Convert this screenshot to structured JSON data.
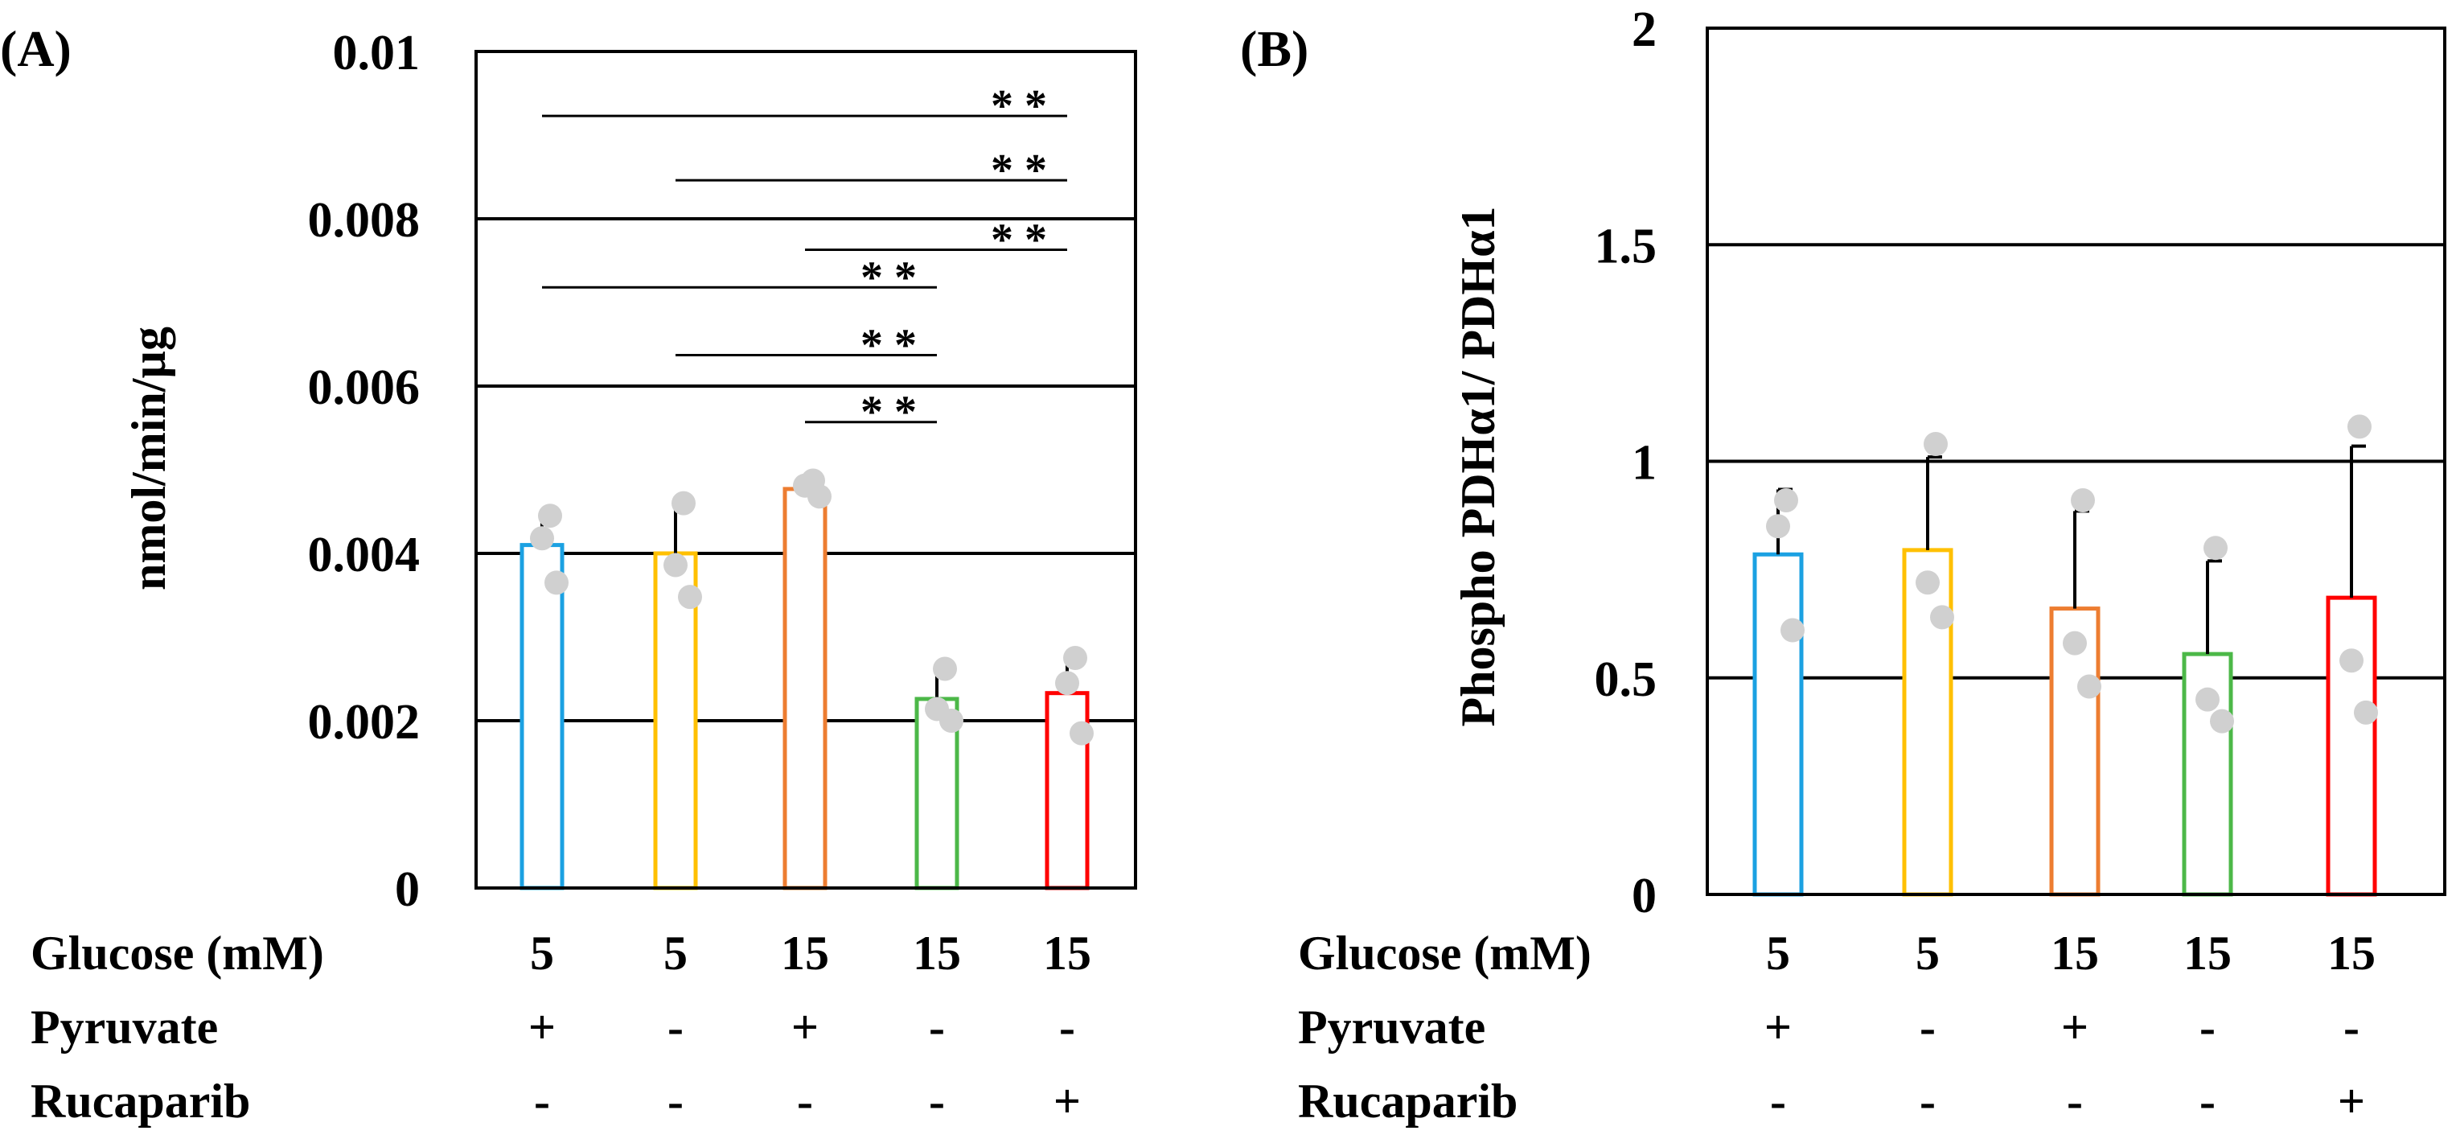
{
  "colors": {
    "bar_colors": [
      "#1ba1e2",
      "#ffc000",
      "#ed7d31",
      "#4cb848",
      "#ff0000"
    ],
    "point_color": "#d0d0d0",
    "axis_color": "#000000"
  },
  "conditions": {
    "row_labels": [
      "Glucose (mM)",
      "Pyruvate",
      "Rucaparib"
    ],
    "glucose": [
      "5",
      "5",
      "15",
      "15",
      "15"
    ],
    "pyruvate": [
      "+",
      "-",
      "+",
      "-",
      "-"
    ],
    "rucaparib": [
      "-",
      "-",
      "-",
      "-",
      "+"
    ]
  },
  "chart_data": [
    {
      "panel": "(A)",
      "type": "bar",
      "ylabel": "nmol/min/µg",
      "ylim": [
        0,
        0.01
      ],
      "yticks": [
        0,
        0.002,
        0.004,
        0.006,
        0.008,
        0.01
      ],
      "ytick_labels": [
        "0",
        "0.002",
        "0.004",
        "0.006",
        "0.008",
        "0.01"
      ],
      "grid": true,
      "categories": [
        "5 mM Glucose + Pyruvate",
        "5 mM Glucose",
        "15 mM Glucose + Pyruvate",
        "15 mM Glucose",
        "15 mM Glucose + Rucaparib"
      ],
      "values": [
        0.0041,
        0.004,
        0.00477,
        0.00226,
        0.00233
      ],
      "error": [
        0.00043,
        0.00056,
        0.00013,
        0.00034,
        0.00048
      ],
      "points": [
        [
          0.00445,
          0.00418,
          0.00365
        ],
        [
          0.0046,
          0.00386,
          0.00348
        ],
        [
          0.00487,
          0.00481,
          0.00468
        ],
        [
          0.00262,
          0.00214,
          0.002
        ],
        [
          0.00275,
          0.00245,
          0.00185
        ]
      ],
      "significance": [
        {
          "from": 0,
          "to": 4,
          "y": 0.00923,
          "label": "* *"
        },
        {
          "from": 1,
          "to": 4,
          "y": 0.00846,
          "label": "* *"
        },
        {
          "from": 2,
          "to": 4,
          "y": 0.00763,
          "label": "* *"
        },
        {
          "from": 0,
          "to": 3,
          "y": 0.00718,
          "label": "* *"
        },
        {
          "from": 1,
          "to": 3,
          "y": 0.00637,
          "label": "* *"
        },
        {
          "from": 2,
          "to": 3,
          "y": 0.00557,
          "label": "* *"
        }
      ]
    },
    {
      "panel": "(B)",
      "type": "bar",
      "ylabel": "Phospho PDHα1/ PDHα1",
      "ylim": [
        0,
        2
      ],
      "yticks": [
        0,
        0.5,
        1,
        1.5,
        2
      ],
      "ytick_labels": [
        "0",
        "0.5",
        "1",
        "1.5",
        "2"
      ],
      "grid": true,
      "categories": [
        "5 mM Glucose + Pyruvate",
        "5 mM Glucose",
        "15 mM Glucose + Pyruvate",
        "15 mM Glucose",
        "15 mM Glucose + Rucaparib"
      ],
      "values": [
        0.785,
        0.795,
        0.66,
        0.555,
        0.685
      ],
      "error": [
        0.15,
        0.215,
        0.225,
        0.215,
        0.35
      ],
      "points": [
        [
          0.91,
          0.85,
          0.61
        ],
        [
          1.04,
          0.72,
          0.64
        ],
        [
          0.91,
          0.58,
          0.48
        ],
        [
          0.8,
          0.45,
          0.4
        ],
        [
          1.08,
          0.54,
          0.42
        ]
      ],
      "significance": []
    }
  ]
}
